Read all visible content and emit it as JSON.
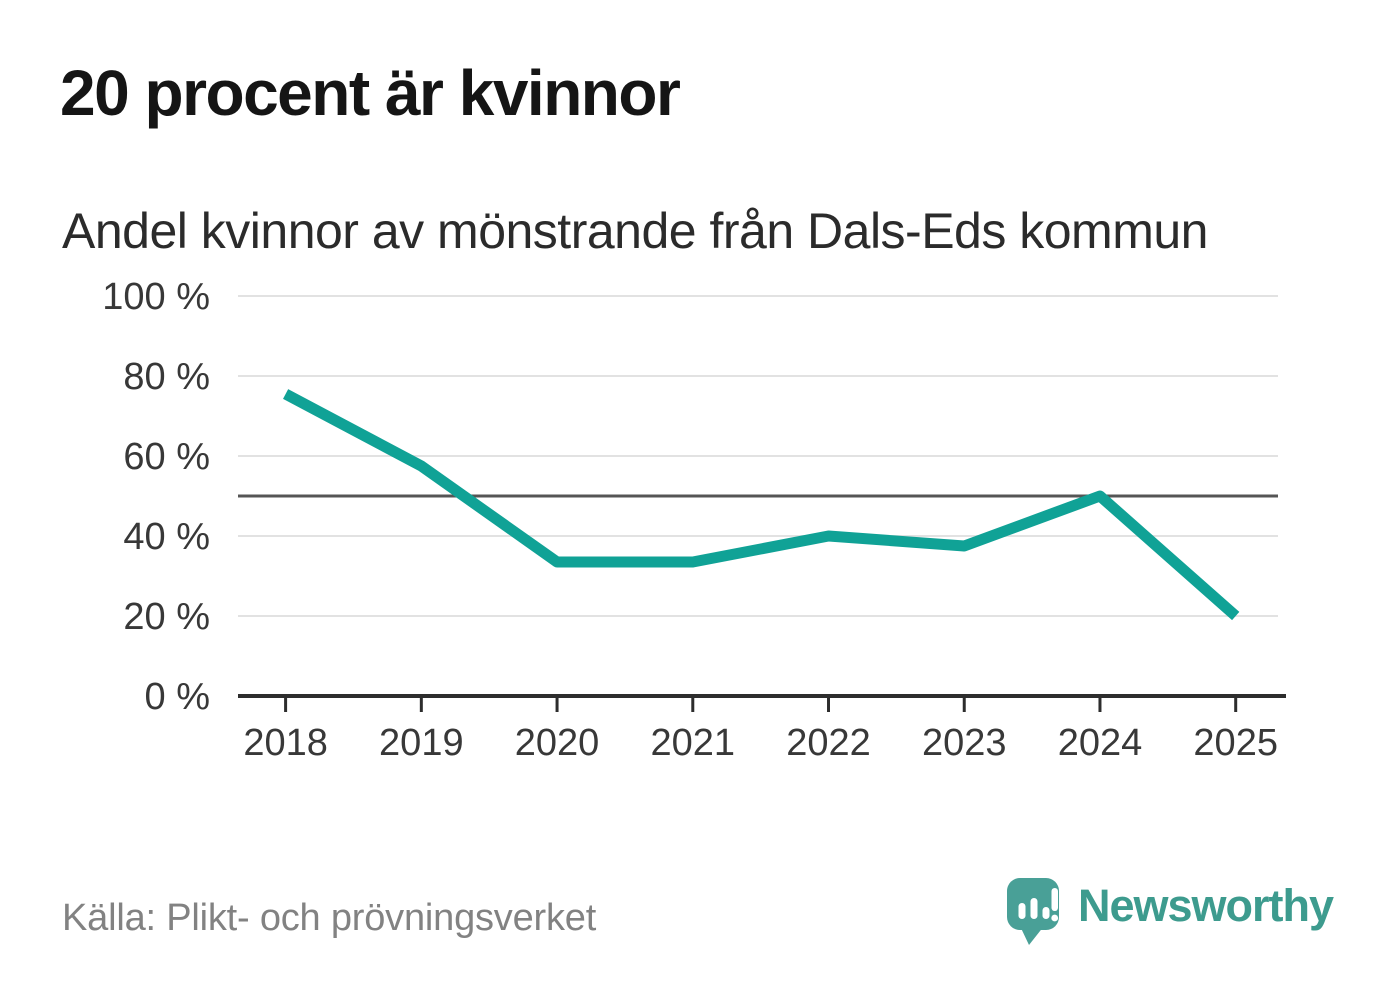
{
  "title": "20 procent är kvinnor",
  "subtitle": "Andel kvinnor av mönstrande från Dals-Eds kommun",
  "source": "Källa: Plikt- och prövningsverket",
  "brand": {
    "name": "Newsworthy",
    "icon": "speech-bubble-bar-chart-icon"
  },
  "colors": {
    "line": "#10a296",
    "reference_line": "#555555",
    "grid": "#e2e2e2",
    "axis": "#2d2d2d",
    "text_axis": "#383838",
    "title_text": "#151515",
    "subtitle_text": "#2b2b2b",
    "source_text": "#828282",
    "brand_teal": "#3d9b8e",
    "brand_bubble": "#49a097"
  },
  "chart_data": {
    "type": "line",
    "x": [
      "2018",
      "2019",
      "2020",
      "2021",
      "2022",
      "2023",
      "2024",
      "2025"
    ],
    "series": [
      {
        "name": "Andel kvinnor av mönstrande",
        "values": [
          75.5,
          57.5,
          33.5,
          33.5,
          40,
          37.5,
          50,
          20
        ]
      }
    ],
    "title": "20 procent är kvinnor",
    "subtitle": "Andel kvinnor av mönstrande från Dals-Eds kommun",
    "xlabel": "",
    "ylabel": "",
    "ylim": [
      0,
      100
    ],
    "yticks": [
      0,
      20,
      40,
      60,
      80,
      100
    ],
    "ytick_format": "{v} %",
    "reference_line": 50,
    "grid": "horizontal",
    "legend": "none"
  }
}
